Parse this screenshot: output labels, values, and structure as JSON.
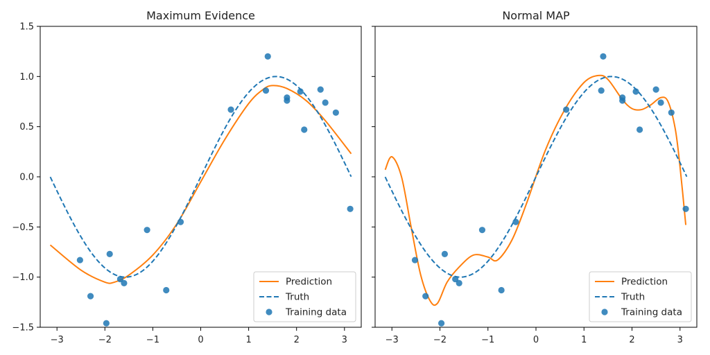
{
  "chart_data": [
    {
      "type": "line",
      "title": "Maximum Evidence",
      "xlabel": "",
      "ylabel": "",
      "xlim": [
        -3.35,
        3.35
      ],
      "ylim": [
        -1.5,
        1.5
      ],
      "xticks": [
        -3,
        -2,
        -1,
        0,
        1,
        2,
        3
      ],
      "yticks": [
        -1.5,
        -1.0,
        -0.5,
        0.0,
        0.5,
        1.0,
        1.5
      ],
      "xtick_labels": [
        "−3",
        "−2",
        "−1",
        "0",
        "1",
        "2",
        "3"
      ],
      "ytick_labels": [
        "−1.5",
        "−1.0",
        "−0.5",
        "0.0",
        "0.5",
        "1.0",
        "1.5"
      ],
      "grid": false,
      "legend_position": "bottom-right",
      "series": [
        {
          "name": "Prediction",
          "kind": "line",
          "style": "solid",
          "color": "#ff7f0e",
          "x": [
            -3.14,
            -2.5,
            -2.0,
            -1.8,
            -1.5,
            -1.0,
            -0.5,
            0.0,
            0.5,
            1.0,
            1.3,
            1.5,
            1.8,
            2.2,
            2.6,
            3.14
          ],
          "y": [
            -0.68,
            -0.93,
            -1.05,
            -1.05,
            -0.98,
            -0.78,
            -0.47,
            -0.05,
            0.37,
            0.73,
            0.87,
            0.91,
            0.88,
            0.76,
            0.56,
            0.23
          ]
        },
        {
          "name": "Truth",
          "kind": "line",
          "style": "dashed",
          "color": "#1f77b4",
          "function": "sin",
          "x_range": [
            -3.14,
            3.14
          ]
        },
        {
          "name": "Training data",
          "kind": "scatter",
          "color": "#1f77b4",
          "x": [
            -2.52,
            -2.3,
            -1.97,
            -1.9,
            -1.68,
            -1.6,
            -1.12,
            -0.72,
            -0.42,
            0.63,
            1.36,
            1.4,
            1.8,
            1.8,
            2.08,
            2.16,
            2.5,
            2.6,
            2.82,
            3.12
          ],
          "y": [
            -0.83,
            -1.19,
            -1.46,
            -0.77,
            -1.02,
            -1.06,
            -0.53,
            -1.13,
            -0.45,
            0.67,
            0.86,
            1.2,
            0.79,
            0.76,
            0.85,
            0.47,
            0.87,
            0.74,
            0.64,
            -0.32
          ]
        }
      ]
    },
    {
      "type": "line",
      "title": "Normal MAP",
      "xlabel": "",
      "ylabel": "",
      "xlim": [
        -3.35,
        3.35
      ],
      "ylim": [
        -1.5,
        1.5
      ],
      "xticks": [
        -3,
        -2,
        -1,
        0,
        1,
        2,
        3
      ],
      "yticks": [
        -1.5,
        -1.0,
        -0.5,
        0.0,
        0.5,
        1.0,
        1.5
      ],
      "xtick_labels": [
        "−3",
        "−2",
        "−1",
        "0",
        "1",
        "2",
        "3"
      ],
      "ytick_labels": [],
      "grid": false,
      "legend_position": "bottom-right",
      "series": [
        {
          "name": "Prediction",
          "kind": "line",
          "style": "solid",
          "color": "#ff7f0e",
          "x": [
            -3.14,
            -3.0,
            -2.8,
            -2.6,
            -2.4,
            -2.2,
            -2.05,
            -1.85,
            -1.6,
            -1.3,
            -1.0,
            -0.8,
            -0.5,
            -0.2,
            0.2,
            0.6,
            1.0,
            1.3,
            1.5,
            1.8,
            2.0,
            2.2,
            2.4,
            2.6,
            2.75,
            2.9,
            3.0,
            3.12
          ],
          "y": [
            0.07,
            0.2,
            0.0,
            -0.5,
            -0.98,
            -1.24,
            -1.26,
            -1.05,
            -0.9,
            -0.78,
            -0.8,
            -0.83,
            -0.63,
            -0.27,
            0.27,
            0.67,
            0.94,
            1.01,
            0.97,
            0.77,
            0.68,
            0.67,
            0.72,
            0.79,
            0.75,
            0.48,
            0.1,
            -0.48
          ]
        },
        {
          "name": "Truth",
          "kind": "line",
          "style": "dashed",
          "color": "#1f77b4",
          "function": "sin",
          "x_range": [
            -3.14,
            3.14
          ]
        },
        {
          "name": "Training data",
          "kind": "scatter",
          "color": "#1f77b4",
          "x": [
            -2.52,
            -2.3,
            -1.97,
            -1.9,
            -1.68,
            -1.6,
            -1.12,
            -0.72,
            -0.42,
            0.63,
            1.36,
            1.4,
            1.8,
            1.8,
            2.08,
            2.16,
            2.5,
            2.6,
            2.82,
            3.12
          ],
          "y": [
            -0.83,
            -1.19,
            -1.46,
            -0.77,
            -1.02,
            -1.06,
            -0.53,
            -1.13,
            -0.45,
            0.67,
            0.86,
            1.2,
            0.79,
            0.76,
            0.85,
            0.47,
            0.87,
            0.74,
            0.64,
            -0.32
          ]
        }
      ]
    }
  ]
}
